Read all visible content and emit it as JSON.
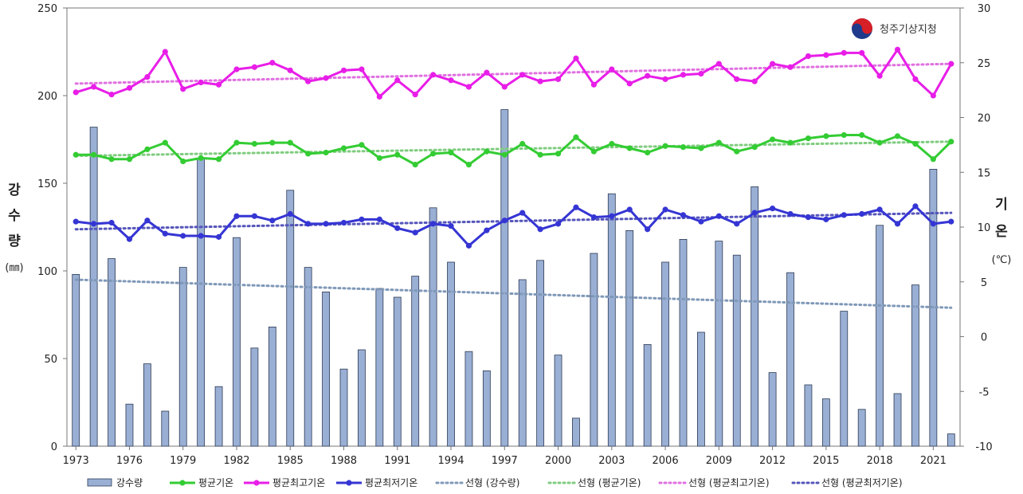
{
  "logo": {
    "text": "청주기상지청"
  },
  "chart_data": {
    "type": "bar+line",
    "years": [
      1973,
      1974,
      1975,
      1976,
      1977,
      1978,
      1979,
      1980,
      1981,
      1982,
      1983,
      1984,
      1985,
      1986,
      1987,
      1988,
      1989,
      1990,
      1991,
      1992,
      1993,
      1994,
      1995,
      1996,
      1997,
      1998,
      1999,
      2000,
      2001,
      2002,
      2003,
      2004,
      2005,
      2006,
      2007,
      2008,
      2009,
      2010,
      2011,
      2012,
      2013,
      2014,
      2015,
      2016,
      2017,
      2018,
      2019,
      2020,
      2021,
      2022
    ],
    "x_tick_labels": [
      "1973",
      "1976",
      "1979",
      "1982",
      "1985",
      "1988",
      "1991",
      "1994",
      "1997",
      "2000",
      "2003",
      "2006",
      "2009",
      "2012",
      "2015",
      "2018",
      "2021"
    ],
    "left_axis": {
      "label_chars": [
        "강",
        "수",
        "량"
      ],
      "unit": "(㎜)",
      "min": 0,
      "max": 250,
      "ticks": [
        "0",
        "50",
        "100",
        "150",
        "200",
        "250"
      ]
    },
    "right_axis": {
      "label_chars": [
        "기",
        "온"
      ],
      "unit": "(℃)",
      "min": -10,
      "max": 30,
      "ticks": [
        "-10",
        "-5",
        "0",
        "5",
        "10",
        "15",
        "20",
        "25",
        "30"
      ]
    },
    "series": [
      {
        "name": "강수량",
        "kind": "bar",
        "axis": "left",
        "color": "#9aafd4",
        "values": [
          98,
          182,
          107,
          24,
          47,
          20,
          102,
          164,
          34,
          119,
          56,
          68,
          146,
          102,
          88,
          44,
          55,
          90,
          85,
          97,
          136,
          105,
          54,
          43,
          192,
          95,
          106,
          52,
          16,
          110,
          144,
          123,
          58,
          105,
          118,
          65,
          117,
          109,
          148,
          42,
          99,
          35,
          27,
          77,
          21,
          126,
          30,
          92,
          158,
          7
        ]
      },
      {
        "name": "평균기온",
        "kind": "line",
        "axis": "right",
        "color": "#33cc33",
        "values": [
          16.6,
          16.6,
          16.2,
          16.2,
          17.1,
          17.7,
          16.0,
          16.3,
          16.2,
          17.7,
          17.6,
          17.7,
          17.7,
          16.7,
          16.8,
          17.2,
          17.5,
          16.3,
          16.6,
          15.7,
          16.7,
          16.8,
          15.7,
          16.9,
          16.6,
          17.6,
          16.6,
          16.7,
          18.2,
          16.9,
          17.6,
          17.2,
          16.8,
          17.4,
          17.3,
          17.2,
          17.7,
          16.9,
          17.3,
          18.0,
          17.7,
          18.1,
          18.3,
          18.4,
          18.4,
          17.7,
          18.3,
          17.6,
          16.2,
          17.8
        ]
      },
      {
        "name": "평균최고기온",
        "kind": "line",
        "axis": "right",
        "color": "#e81ee8",
        "values": [
          22.3,
          22.8,
          22.1,
          22.7,
          23.7,
          26.0,
          22.6,
          23.2,
          23.0,
          24.4,
          24.6,
          25.0,
          24.3,
          23.3,
          23.6,
          24.3,
          24.4,
          21.9,
          23.4,
          22.1,
          23.9,
          23.4,
          22.8,
          24.1,
          22.8,
          23.9,
          23.3,
          23.5,
          25.4,
          23.0,
          24.4,
          23.1,
          23.8,
          23.5,
          23.9,
          24.0,
          24.9,
          23.5,
          23.3,
          24.9,
          24.6,
          25.6,
          25.7,
          25.9,
          25.9,
          23.8,
          26.2,
          23.5,
          22.0,
          24.9
        ]
      },
      {
        "name": "평균최저기온",
        "kind": "line",
        "axis": "right",
        "color": "#3535d4",
        "values": [
          10.5,
          10.3,
          10.4,
          8.9,
          10.6,
          9.4,
          9.2,
          9.2,
          9.1,
          11.0,
          11.0,
          10.6,
          11.2,
          10.3,
          10.3,
          10.4,
          10.7,
          10.7,
          9.9,
          9.5,
          10.3,
          10.1,
          8.3,
          9.7,
          10.6,
          11.3,
          9.8,
          10.3,
          11.8,
          10.9,
          11.0,
          11.6,
          9.8,
          11.6,
          11.1,
          10.5,
          11.0,
          10.3,
          11.3,
          11.7,
          11.2,
          10.9,
          10.7,
          11.1,
          11.2,
          11.6,
          10.3,
          11.9,
          10.3,
          10.5
        ]
      },
      {
        "name": "선형 (강수량)",
        "kind": "trend",
        "axis": "left",
        "color": "#7f98b8",
        "start": 95,
        "end": 79
      },
      {
        "name": "선형 (평균기온)",
        "kind": "trend",
        "axis": "right",
        "color": "#7fcc7f",
        "start": 16.5,
        "end": 17.8
      },
      {
        "name": "선형 (평균최고기온)",
        "kind": "trend",
        "axis": "right",
        "color": "#e070e0",
        "start": 23.1,
        "end": 24.9
      },
      {
        "name": "선형 (평균최저기온)",
        "kind": "trend",
        "axis": "right",
        "color": "#5555bb",
        "start": 9.8,
        "end": 11.3
      }
    ],
    "grid": false,
    "legend_position": "bottom"
  }
}
